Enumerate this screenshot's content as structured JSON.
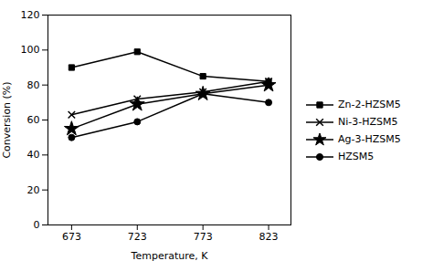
{
  "chart_data": {
    "type": "line",
    "xlabel": "Temperature, K",
    "ylabel": "Conversion (%)",
    "x": [
      673,
      723,
      773,
      823
    ],
    "series": [
      {
        "name": "Zn-2-HZSM5",
        "color": "#000000",
        "marker": "square",
        "values": [
          90,
          99,
          85,
          82
        ]
      },
      {
        "name": "Ni-3-HZSM5",
        "color": "#000000",
        "marker": "times",
        "values": [
          63,
          72,
          76,
          82
        ]
      },
      {
        "name": "Ag-3-HZSM5",
        "color": "#000000",
        "marker": "star",
        "values": [
          55,
          69,
          75,
          80
        ]
      },
      {
        "name": "HZSM5",
        "color": "#000000",
        "marker": "circle",
        "values": [
          50,
          59,
          75,
          70
        ]
      }
    ],
    "xlim": [
      655,
      840
    ],
    "xticks": [
      673,
      723,
      773,
      823
    ],
    "ylim": [
      0,
      120
    ],
    "yticks": [
      0,
      20,
      40,
      60,
      80,
      100,
      120
    ],
    "grid": false,
    "legend": "right"
  }
}
